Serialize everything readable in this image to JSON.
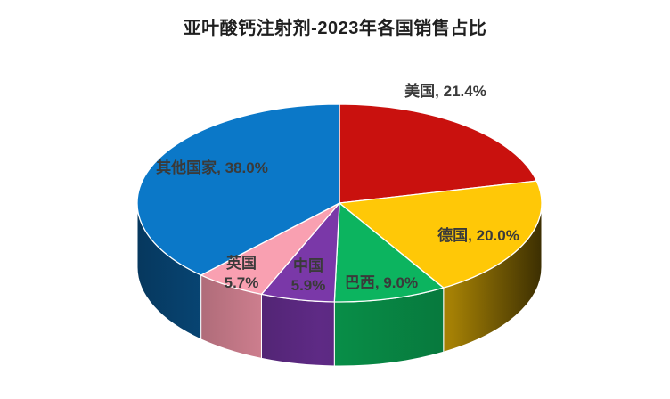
{
  "page": {
    "background": "#FFFFFF"
  },
  "chart_data": {
    "type": "pie",
    "projection": "3d",
    "title": "亚叶酸钙注射剂-2023年各国销售占比",
    "unit": "%",
    "direction": "clockwise",
    "start_angle_deg": 0,
    "legend": "none",
    "label_color": "#3A3A3A",
    "categories": [
      "美国",
      "德国",
      "巴西",
      "中国",
      "英国",
      "其他国家"
    ],
    "values": [
      21.4,
      20.0,
      9.0,
      5.9,
      5.7,
      38.0
    ],
    "colors": [
      "#C9110E",
      "#FFC807",
      "#0CB45F",
      "#7A38A8",
      "#F9A0B1",
      "#0B78C8"
    ],
    "side_colors": [
      "#8F0B0A",
      "#C79B06",
      "#089149",
      "#5E2A85",
      "#E98FA1",
      "#0A5A97"
    ],
    "data_labels": [
      "美国, 21.4%",
      "德国, 20.0%",
      "巴西, 9.0%",
      "中国\n5.9%",
      "英国\n5.7%",
      "其他国家, 38.0%"
    ]
  }
}
